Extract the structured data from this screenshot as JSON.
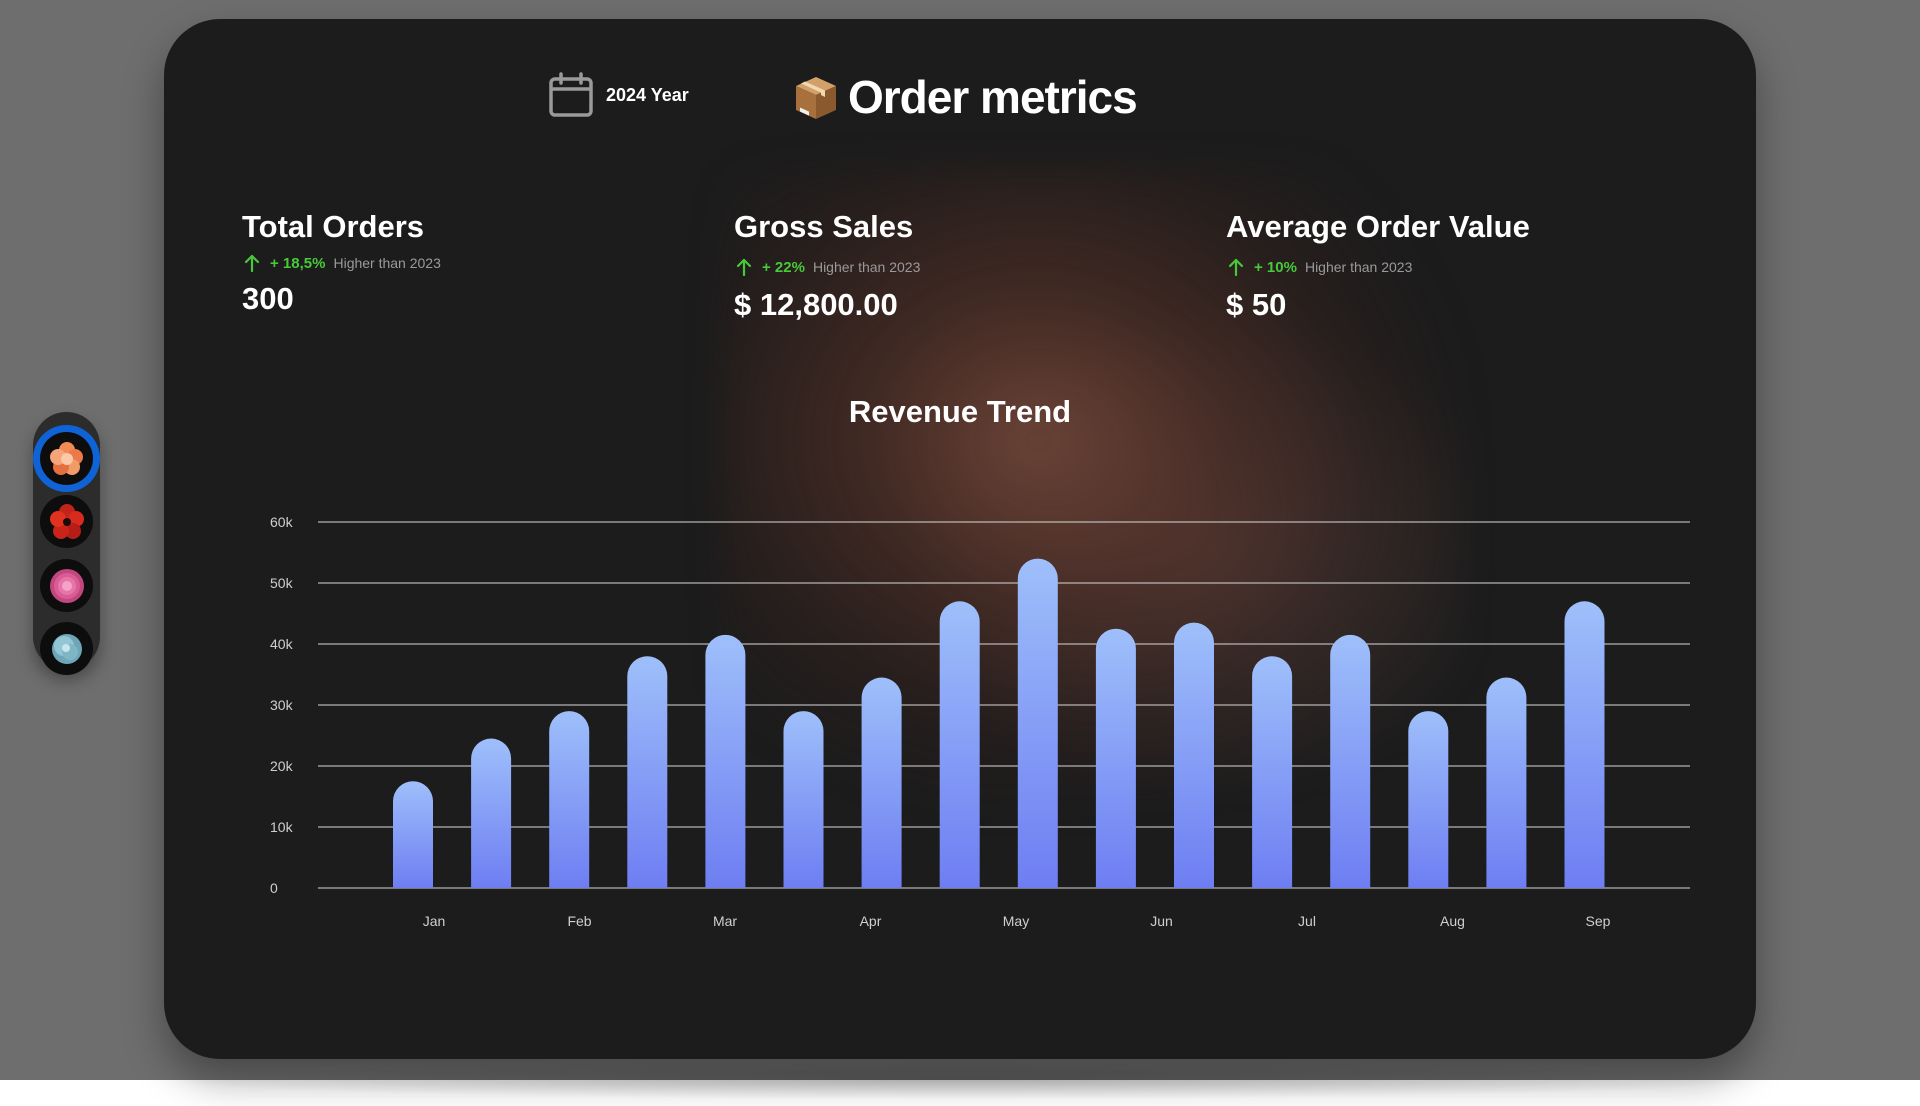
{
  "header": {
    "year_label": "2024 Year",
    "title": "Order metrics",
    "icons": {
      "year": "calendar-icon",
      "title": "package-box-icon"
    }
  },
  "metrics": [
    {
      "title": "Total Orders",
      "change": "+ 18,5%",
      "comparison": "Higher than 2023",
      "value": "300",
      "trend_icon": "arrow-up-icon"
    },
    {
      "title": "Gross Sales",
      "change": "+ 22%",
      "comparison": "Higher than 2023",
      "value": "$ 12,800.00",
      "trend_icon": "arrow-up-icon"
    },
    {
      "title": "Average Order Value",
      "change": "+ 10%",
      "comparison": "Higher than 2023",
      "value": "$ 50",
      "trend_icon": "arrow-up-icon"
    }
  ],
  "dock": {
    "items": [
      {
        "name": "orange-flower",
        "icon": "orange-flower-icon",
        "selected": true
      },
      {
        "name": "red-flower",
        "icon": "red-flower-icon",
        "selected": false
      },
      {
        "name": "pink-flower",
        "icon": "pink-flower-icon",
        "selected": false
      },
      {
        "name": "blue-flower",
        "icon": "blue-flower-icon",
        "selected": false
      }
    ]
  },
  "colors": {
    "background": "#1c1c1c",
    "positive": "#48c93a",
    "bar_top": "#9ebffa",
    "bar_bottom": "#6e7ef2",
    "dock_selected": "#0f63d6"
  },
  "chart_data": {
    "type": "bar",
    "title": "Revenue Trend",
    "xlabel": "",
    "ylabel": "",
    "x_tick_labels": [
      "Jan",
      "Feb",
      "Mar",
      "Apr",
      "May",
      "Jun",
      "Jul",
      "Aug",
      "Sep"
    ],
    "y_tick_labels": [
      "0",
      "10k",
      "20k",
      "30k",
      "40k",
      "50k",
      "60k"
    ],
    "ylim": [
      0,
      60000
    ],
    "grid": true,
    "legend": "none",
    "series": [
      {
        "values": [
          17500,
          24500,
          29000,
          38000,
          41500,
          29000,
          34500,
          47000,
          54000,
          42500,
          43500,
          38000,
          41500,
          29000,
          34500,
          47000
        ]
      }
    ]
  }
}
